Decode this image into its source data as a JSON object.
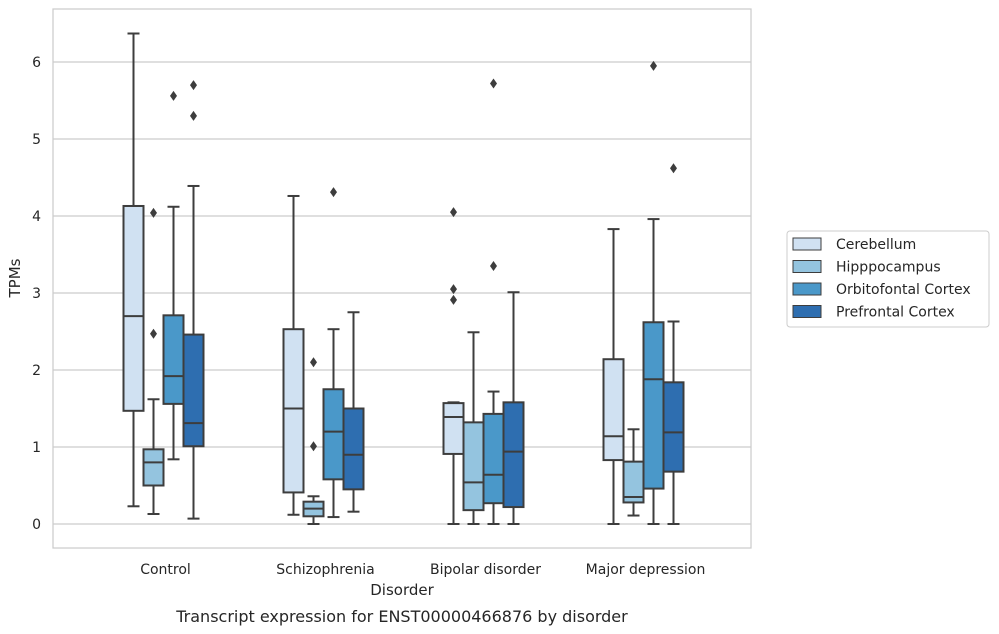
{
  "chart_data": {
    "type": "box",
    "title": "",
    "caption": "Transcript expression for ENST00000466876 by disorder",
    "xlabel": "Disorder",
    "ylabel": "TPMs",
    "ylim": [
      -0.3,
      6.7
    ],
    "yticks": [
      "0",
      "1",
      "2",
      "3",
      "4",
      "5",
      "6"
    ],
    "grid": true,
    "legend_position": "right",
    "categories": [
      "Control",
      "Schizophrenia",
      "Bipolar disorder",
      "Major depression"
    ],
    "series": [
      {
        "name": "Cerebellum",
        "color": "#d0e1f2",
        "boxes": [
          {
            "min": 0.23,
            "q1": 1.47,
            "median": 2.7,
            "q3": 4.13,
            "max": 6.37,
            "outliers": []
          },
          {
            "min": 0.12,
            "q1": 0.41,
            "median": 1.5,
            "q3": 2.53,
            "max": 4.26,
            "outliers": []
          },
          {
            "min": 0.0,
            "q1": 0.91,
            "median": 1.39,
            "q3": 1.57,
            "max": 1.58,
            "outliers": [
              2.91,
              3.05,
              4.05
            ]
          },
          {
            "min": 0.0,
            "q1": 0.83,
            "median": 1.14,
            "q3": 2.14,
            "max": 3.83,
            "outliers": []
          }
        ]
      },
      {
        "name": "Hipppocampus",
        "color": "#94c4df",
        "boxes": [
          {
            "min": 0.13,
            "q1": 0.5,
            "median": 0.8,
            "q3": 0.97,
            "max": 1.62,
            "outliers": [
              2.47,
              4.04
            ]
          },
          {
            "min": 0.0,
            "q1": 0.1,
            "median": 0.2,
            "q3": 0.29,
            "max": 0.36,
            "outliers": [
              1.01,
              2.1
            ]
          },
          {
            "min": 0.0,
            "q1": 0.18,
            "median": 0.54,
            "q3": 1.32,
            "max": 2.49,
            "outliers": []
          },
          {
            "min": 0.11,
            "q1": 0.28,
            "median": 0.35,
            "q3": 0.81,
            "max": 1.23,
            "outliers": []
          }
        ]
      },
      {
        "name": "Orbitofontal Cortex",
        "color": "#4a98c9",
        "boxes": [
          {
            "min": 0.84,
            "q1": 1.56,
            "median": 1.92,
            "q3": 2.71,
            "max": 4.12,
            "outliers": [
              5.56
            ]
          },
          {
            "min": 0.09,
            "q1": 0.58,
            "median": 1.2,
            "q3": 1.75,
            "max": 2.53,
            "outliers": [
              4.31
            ]
          },
          {
            "min": 0.0,
            "q1": 0.27,
            "median": 0.64,
            "q3": 1.43,
            "max": 1.72,
            "outliers": [
              3.35,
              5.72
            ]
          },
          {
            "min": 0.0,
            "q1": 0.46,
            "median": 1.88,
            "q3": 2.62,
            "max": 3.96,
            "outliers": [
              5.95
            ]
          }
        ]
      },
      {
        "name": "Prefrontal Cortex",
        "color": "#2e6eb0",
        "boxes": [
          {
            "min": 0.07,
            "q1": 1.01,
            "median": 1.31,
            "q3": 2.46,
            "max": 4.39,
            "outliers": [
              5.3,
              5.7
            ]
          },
          {
            "min": 0.16,
            "q1": 0.45,
            "median": 0.9,
            "q3": 1.5,
            "max": 2.75,
            "outliers": []
          },
          {
            "min": 0.0,
            "q1": 0.22,
            "median": 0.94,
            "q3": 1.58,
            "max": 3.01,
            "outliers": []
          },
          {
            "min": 0.0,
            "q1": 0.68,
            "median": 1.19,
            "q3": 1.84,
            "max": 2.63,
            "outliers": [
              4.62
            ]
          }
        ]
      }
    ]
  }
}
